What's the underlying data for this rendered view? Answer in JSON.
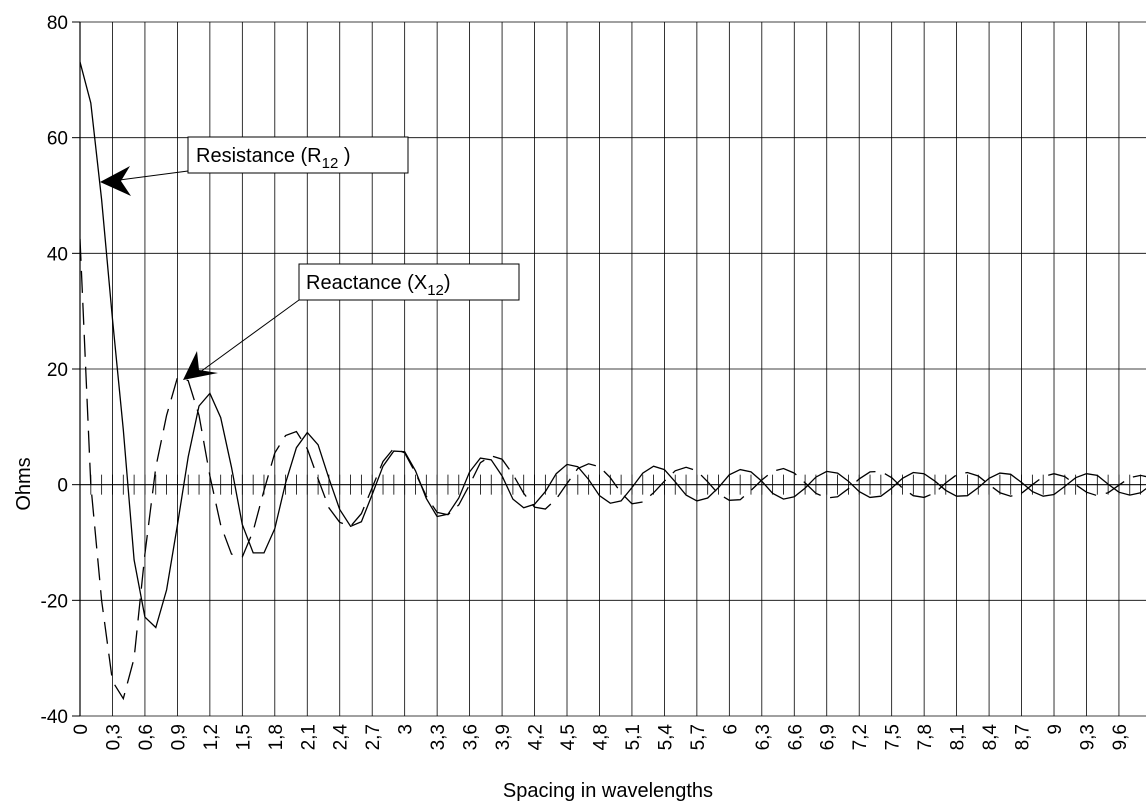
{
  "chart_data": {
    "type": "line",
    "title": "",
    "xlabel": "Spacing in wavelengths",
    "ylabel": "Ohms",
    "xlim": [
      0,
      10
    ],
    "ylim": [
      -40,
      80
    ],
    "yticks": [
      -40,
      -20,
      0,
      20,
      40,
      60,
      80
    ],
    "x_tick_labels": [
      "0",
      "0,3",
      "0,6",
      "0,9",
      "1,2",
      "1,5",
      "1,8",
      "2,1",
      "2,4",
      "2,7",
      "3",
      "3,3",
      "3,6",
      "3,9",
      "4,2",
      "4,5",
      "4,8",
      "5,1",
      "5,4",
      "5,7",
      "6",
      "6,3",
      "6,6",
      "6,9",
      "7,2",
      "7,5",
      "7,8",
      "8,1",
      "8,4",
      "8,7",
      "9",
      "9,3",
      "9,6"
    ],
    "x_tick_step": 0.3,
    "grid": true,
    "series": [
      {
        "id": "resistance",
        "style": "solid",
        "x": [
          0,
          0.1,
          0.2,
          0.3,
          0.4,
          0.5,
          0.6,
          0.7,
          0.8,
          0.9,
          1.0,
          1.1,
          1.2,
          1.3,
          1.4,
          1.5,
          1.6,
          1.7,
          1.8,
          1.9,
          2.0,
          2.1,
          2.2,
          2.3,
          2.4,
          2.5,
          2.6,
          2.7,
          2.8,
          2.9,
          3.0,
          3.1,
          3.2,
          3.3,
          3.4,
          3.5,
          3.6,
          3.7,
          3.8,
          3.9,
          4.0,
          4.1,
          4.2,
          4.3,
          4.4,
          4.5,
          4.6,
          4.7,
          4.8,
          4.9,
          5.0,
          5.1,
          5.2,
          5.3,
          5.4,
          5.5,
          5.6,
          5.7,
          5.8,
          5.9,
          6.0,
          6.1,
          6.2,
          6.3,
          6.4,
          6.5,
          6.6,
          6.7,
          6.8,
          6.9,
          7.0,
          7.1,
          7.2,
          7.3,
          7.4,
          7.5,
          7.6,
          7.7,
          7.8,
          7.9,
          8.0,
          8.1,
          8.2,
          8.3,
          8.4,
          8.5,
          8.6,
          8.7,
          8.8,
          8.9,
          9.0,
          9.1,
          9.2,
          9.3,
          9.4,
          9.5,
          9.6,
          9.7,
          9.8,
          9.9,
          10.0
        ],
        "values": [
          73.1,
          66.0,
          49.3,
          28.6,
          9.5,
          -13.0,
          -22.9,
          -24.7,
          -18.2,
          -7.0,
          4.8,
          13.6,
          15.8,
          11.6,
          3.0,
          -6.9,
          -11.8,
          -11.8,
          -7.6,
          0.3,
          6.4,
          9.0,
          6.9,
          1.1,
          -4.3,
          -7.2,
          -6.4,
          -1.7,
          3.2,
          5.8,
          5.7,
          2.4,
          -2.4,
          -5.5,
          -5.1,
          -2.3,
          2.2,
          4.6,
          4.3,
          1.5,
          -2.5,
          -4.0,
          -3.4,
          -1.2,
          1.9,
          3.5,
          3.1,
          0.9,
          -1.9,
          -3.2,
          -2.8,
          -0.5,
          2.0,
          3.2,
          2.6,
          0.5,
          -1.8,
          -2.8,
          -2.3,
          -0.5,
          1.7,
          2.6,
          2.2,
          0.6,
          -1.5,
          -2.5,
          -2.1,
          -0.6,
          1.3,
          2.3,
          2.0,
          0.6,
          -1.2,
          -2.2,
          -2.0,
          -0.6,
          1.1,
          2.1,
          1.9,
          0.6,
          -1.0,
          -2.0,
          -1.9,
          -0.5,
          1.1,
          2.0,
          1.8,
          0.4,
          -1.2,
          -2.0,
          -1.7,
          -0.3,
          1.2,
          1.9,
          1.6,
          0.1,
          -1.3,
          -1.8,
          -1.4,
          0.0,
          1.0
        ]
      },
      {
        "id": "reactance",
        "style": "dashed",
        "x": [
          0,
          0.1,
          0.2,
          0.3,
          0.4,
          0.5,
          0.6,
          0.7,
          0.8,
          0.9,
          1.0,
          1.1,
          1.2,
          1.3,
          1.4,
          1.5,
          1.6,
          1.7,
          1.8,
          1.9,
          2.0,
          2.1,
          2.2,
          2.3,
          2.4,
          2.5,
          2.6,
          2.7,
          2.8,
          2.9,
          3.0,
          3.1,
          3.2,
          3.3,
          3.4,
          3.5,
          3.6,
          3.7,
          3.8,
          3.9,
          4.0,
          4.1,
          4.2,
          4.3,
          4.4,
          4.5,
          4.6,
          4.7,
          4.8,
          4.9,
          5.0,
          5.1,
          5.2,
          5.3,
          5.4,
          5.5,
          5.6,
          5.7,
          5.8,
          5.9,
          6.0,
          6.1,
          6.2,
          6.3,
          6.4,
          6.5,
          6.6,
          6.7,
          6.8,
          6.9,
          7.0,
          7.1,
          7.2,
          7.3,
          7.4,
          7.5,
          7.6,
          7.7,
          7.8,
          7.9,
          8.0,
          8.1,
          8.2,
          8.3,
          8.4,
          8.5,
          8.6,
          8.7,
          8.8,
          8.9,
          9.0,
          9.1,
          9.2,
          9.3,
          9.4,
          9.5,
          9.6,
          9.7,
          9.8,
          9.9,
          10.0
        ],
        "values": [
          42.5,
          0.0,
          -20.0,
          -34.0,
          -37.0,
          -30.0,
          -12.0,
          3.0,
          12.0,
          18.5,
          18.0,
          12.0,
          1.5,
          -7.0,
          -12.0,
          -12.5,
          -8.0,
          -1.0,
          5.5,
          8.5,
          9.2,
          6.2,
          1.0,
          -4.0,
          -6.5,
          -7.2,
          -5.0,
          -0.5,
          4.0,
          6.3,
          5.5,
          2.0,
          -2.0,
          -4.8,
          -5.2,
          -3.5,
          0.0,
          3.8,
          5.0,
          4.4,
          1.8,
          -1.5,
          -3.9,
          -4.2,
          -2.5,
          0.2,
          2.8,
          3.6,
          3.1,
          1.2,
          -1.4,
          -3.3,
          -3.0,
          -1.4,
          0.6,
          2.4,
          3.0,
          2.4,
          0.5,
          -1.6,
          -2.7,
          -2.6,
          -1.0,
          0.8,
          2.3,
          2.8,
          2.0,
          0.3,
          -1.5,
          -2.3,
          -2.1,
          -0.7,
          1.0,
          2.2,
          2.3,
          1.2,
          -0.6,
          -1.9,
          -2.2,
          -1.4,
          0.3,
          1.7,
          2.1,
          1.5,
          0.0,
          -1.4,
          -2.0,
          -1.5,
          0.0,
          1.4,
          1.9,
          1.4,
          0.0,
          -1.3,
          -1.9,
          -1.4,
          -0.1,
          1.2,
          1.6,
          1.2,
          0.0
        ]
      }
    ],
    "annotations": [
      {
        "id": "resistance-label",
        "text": "Resistance (",
        "sub_prefix": "R",
        "sub": "12",
        "suffix": " )"
      },
      {
        "id": "reactance-label",
        "text": "Reactance (",
        "sub_prefix": "X",
        "sub": "12",
        "suffix": ")"
      }
    ]
  }
}
